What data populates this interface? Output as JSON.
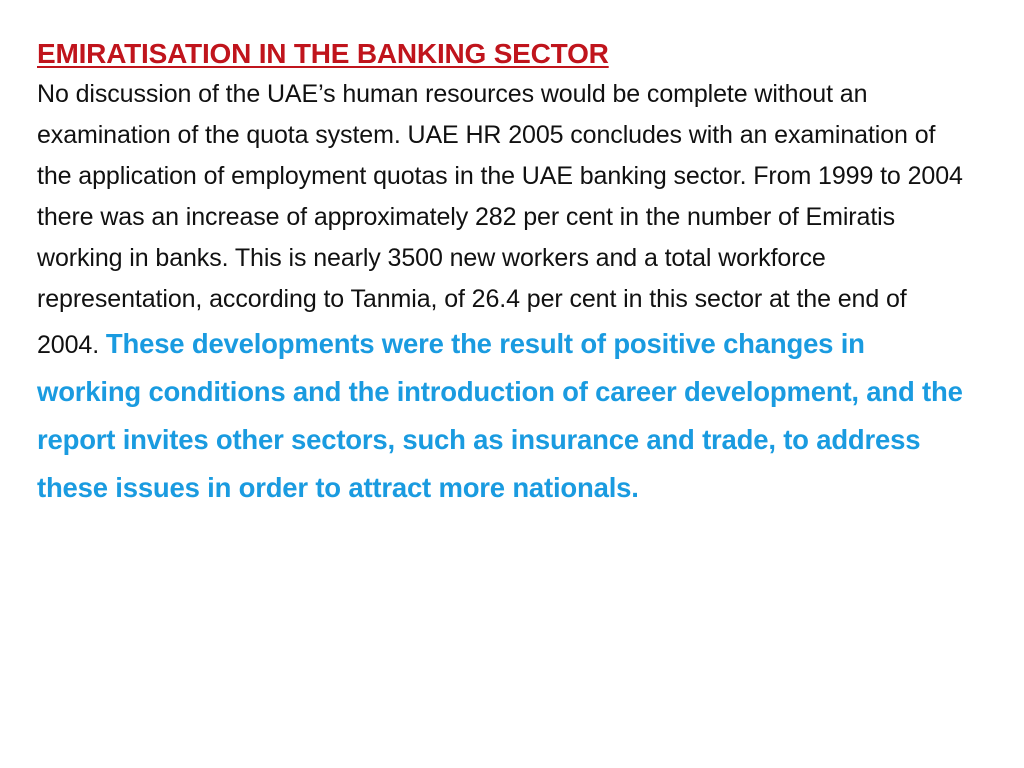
{
  "colors": {
    "title": "#c0141c",
    "body": "#111111",
    "highlight": "#1a9be0",
    "background": "#ffffff"
  },
  "slide": {
    "title": "EMIRATISATION IN THE BANKING SECTOR",
    "body": "No discussion of the UAE’s human resources would be complete without an examination of the quota system. UAE HR 2005 concludes with an examination of the application of employment quotas in the UAE banking sector. From 1999 to 2004 there was an increase of approximately 282 per cent in the number of Emiratis working in banks. This is nearly 3500 new workers and a total workforce representation, according to Tanmia, of 26.4 per cent in this sector at the end of 2004. ",
    "highlight": "These developments were the result of positive changes in working conditions and the introduction of career development, and the report invites other sectors, such as insurance and trade, to address these issues in order to attract more nationals."
  }
}
